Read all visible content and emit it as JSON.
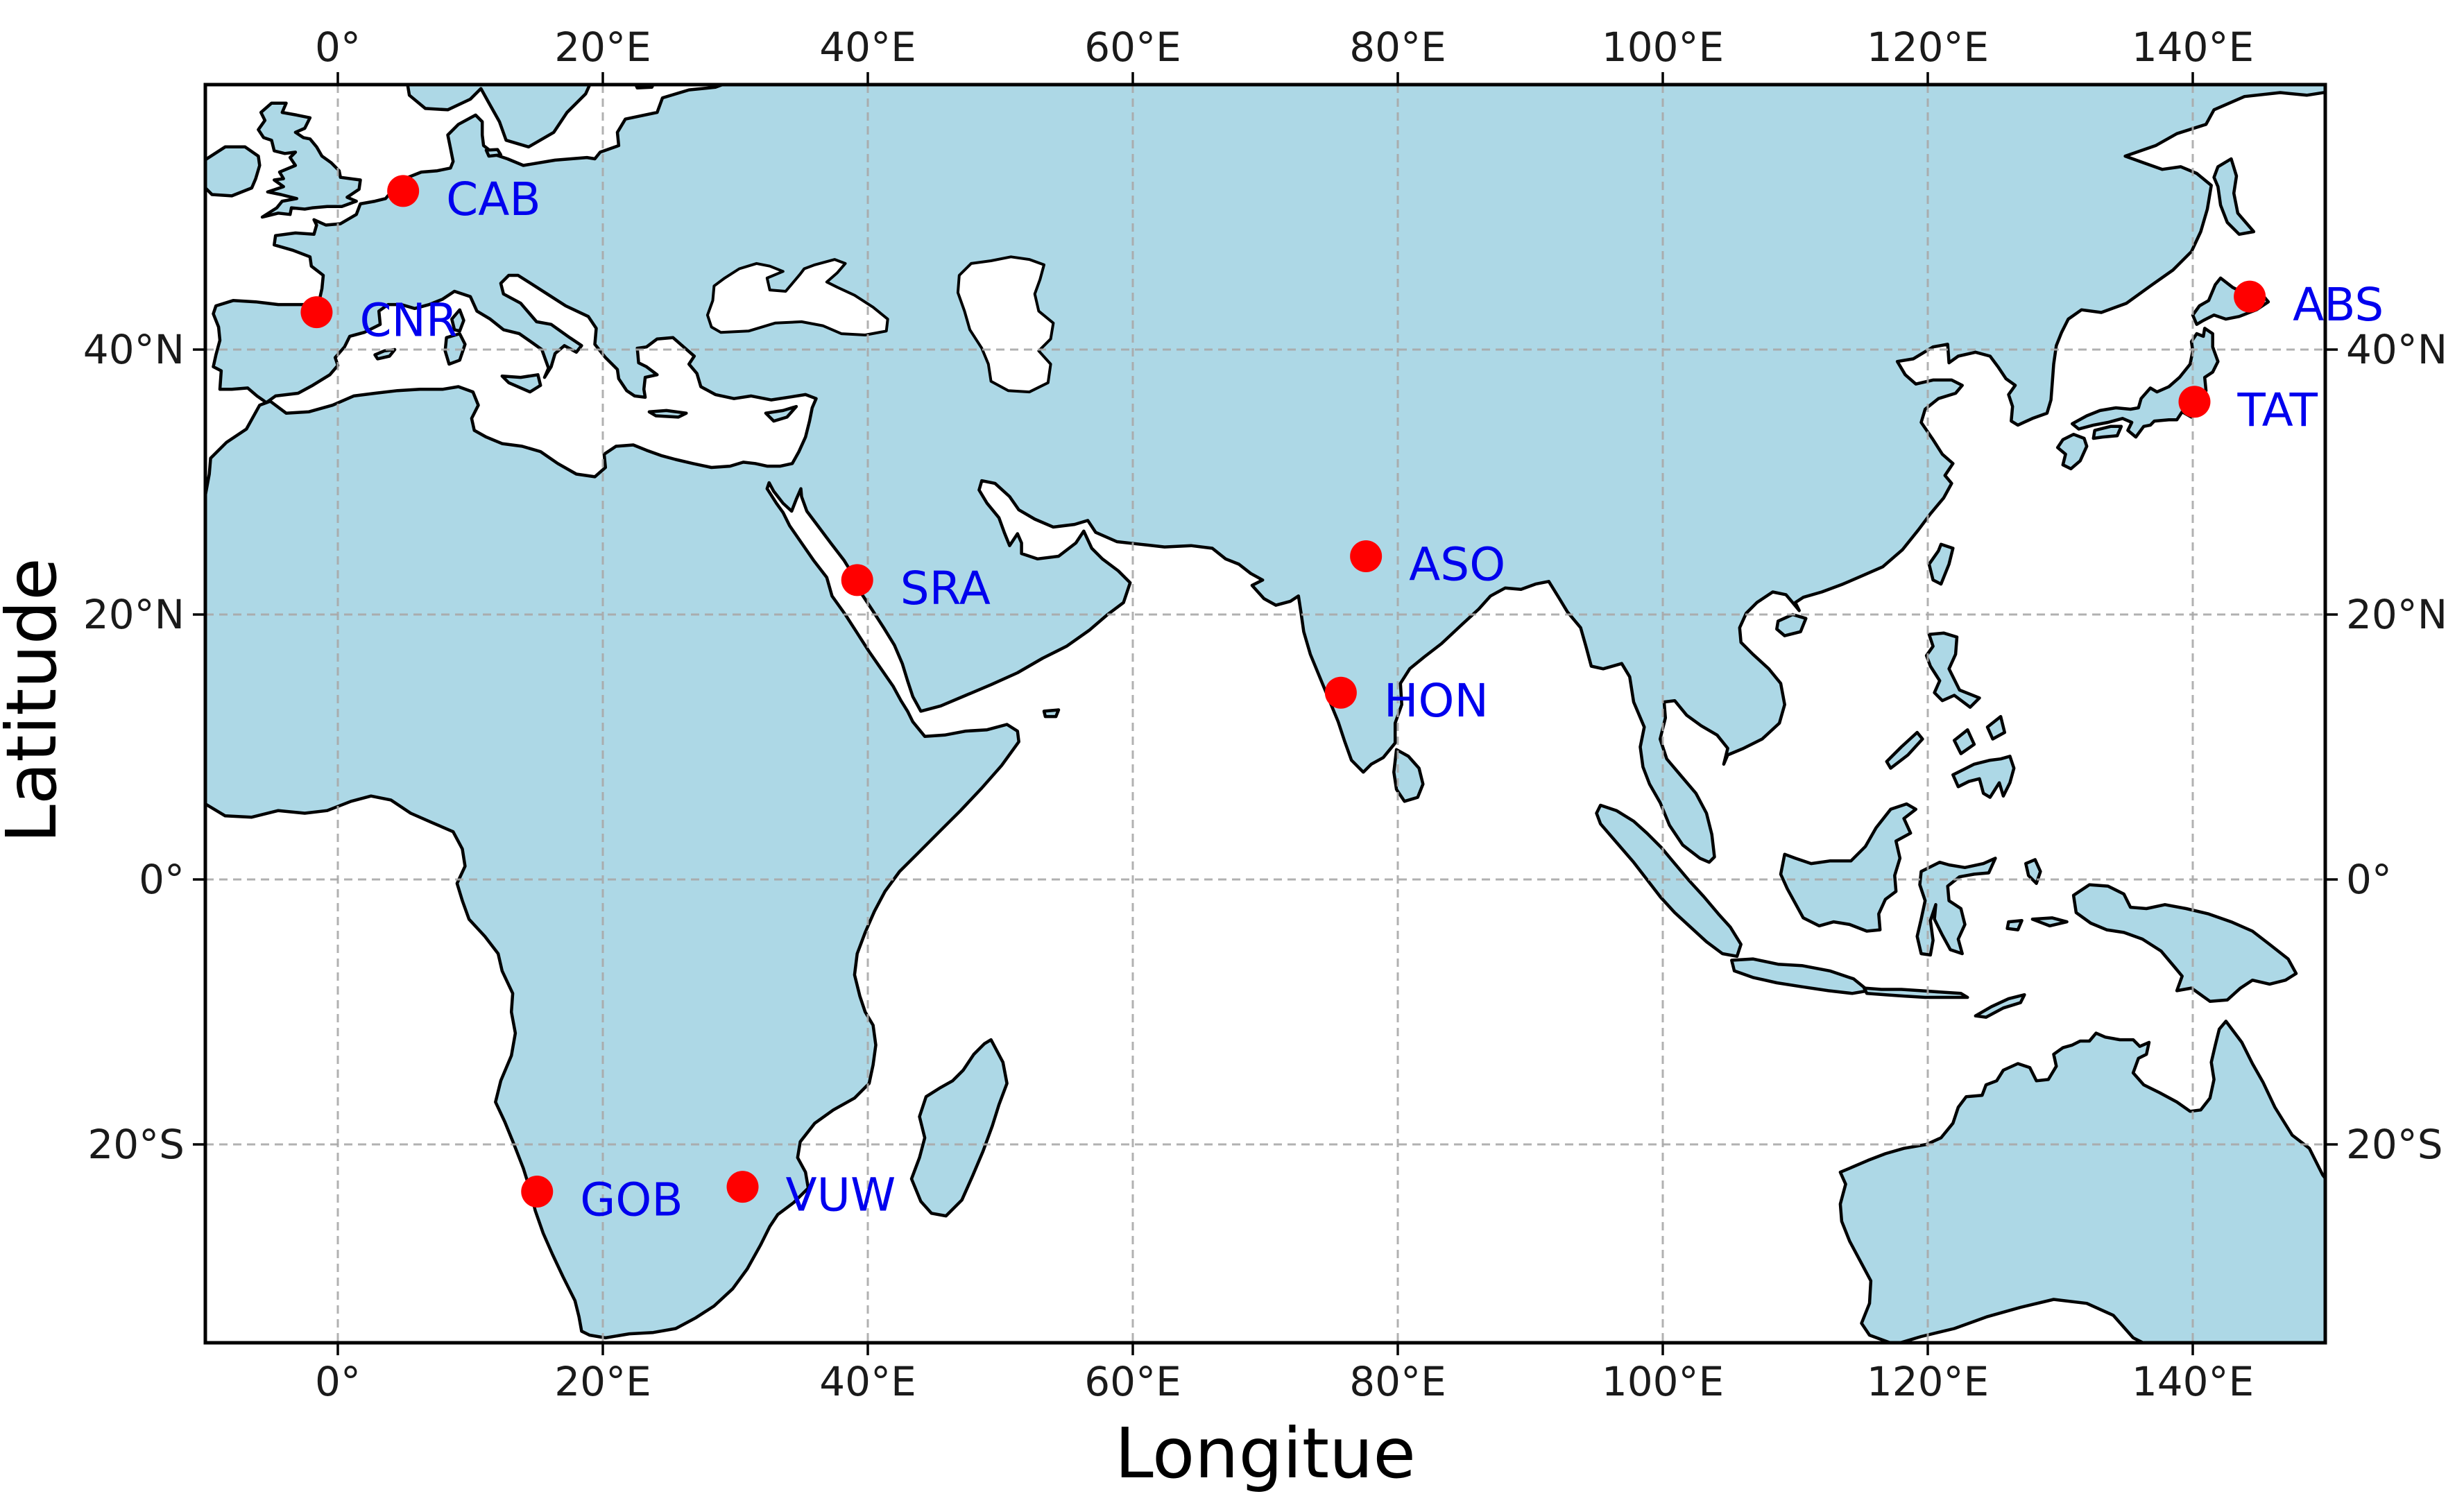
{
  "axes": {
    "xlabel": "Longitue",
    "ylabel": "Latitude"
  },
  "extent": {
    "lon_min": -10,
    "lon_max": 150,
    "lat_min": -35,
    "lat_max": 60
  },
  "ticks": {
    "lon": [
      {
        "v": 0,
        "label": "0°"
      },
      {
        "v": 20,
        "label": "20°E"
      },
      {
        "v": 40,
        "label": "40°E"
      },
      {
        "v": 60,
        "label": "60°E"
      },
      {
        "v": 80,
        "label": "80°E"
      },
      {
        "v": 100,
        "label": "100°E"
      },
      {
        "v": 120,
        "label": "120°E"
      },
      {
        "v": 140,
        "label": "140°E"
      }
    ],
    "lat": [
      {
        "v": 40,
        "label": "40°N"
      },
      {
        "v": 20,
        "label": "20°N"
      },
      {
        "v": 0,
        "label": "0°"
      },
      {
        "v": -20,
        "label": "20°S"
      }
    ]
  },
  "stations": [
    {
      "code": "CAB",
      "lon": 4.93,
      "lat": 51.97
    },
    {
      "code": "CNR",
      "lon": -1.6,
      "lat": 42.82
    },
    {
      "code": "SRA",
      "lon": 39.2,
      "lat": 22.6
    },
    {
      "code": "ASO",
      "lon": 77.6,
      "lat": 24.4
    },
    {
      "code": "HON",
      "lon": 75.7,
      "lat": 14.1
    },
    {
      "code": "GOB",
      "lon": 15.04,
      "lat": -23.56
    },
    {
      "code": "VUW",
      "lon": 30.55,
      "lat": -23.2
    },
    {
      "code": "TAT",
      "lon": 140.13,
      "lat": 36.06
    },
    {
      "code": "ABS",
      "lon": 144.3,
      "lat": 44.0
    }
  ],
  "colors": {
    "land": "#ADD8E6",
    "ocean": "#FFFFFF",
    "coastline": "#000000",
    "grid": "#A9A9A9",
    "frame": "#000000",
    "marker": "#FF0000",
    "station_label": "#0000EE",
    "tick_label": "#1A1A1A",
    "axis_label": "#000000"
  }
}
